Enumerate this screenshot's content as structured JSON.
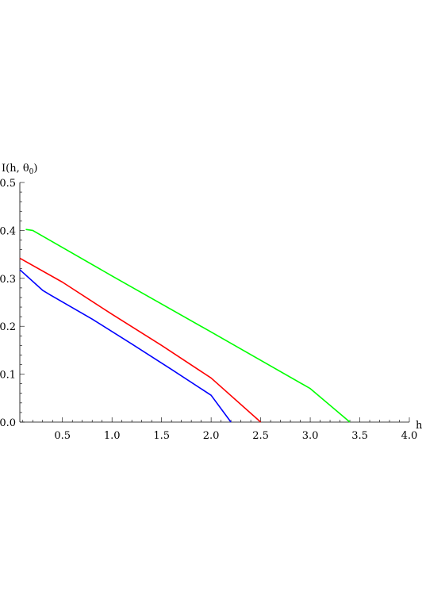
{
  "chart_data": {
    "type": "line",
    "title": "",
    "xlabel": "h",
    "ylabel_parts": {
      "base": "I(h, θ",
      "sub": "0",
      "close": ")"
    },
    "xlim": [
      0.07,
      4.0
    ],
    "ylim": [
      0.0,
      0.5
    ],
    "xticks": [
      {
        "value": 0.5,
        "label": "0.5"
      },
      {
        "value": 1.0,
        "label": "1.0"
      },
      {
        "value": 1.5,
        "label": "1.5"
      },
      {
        "value": 2.0,
        "label": "2.0"
      },
      {
        "value": 2.5,
        "label": "2.5"
      },
      {
        "value": 3.0,
        "label": "3.0"
      },
      {
        "value": 3.5,
        "label": "3.5"
      },
      {
        "value": 4.0,
        "label": "4.0"
      }
    ],
    "yticks": [
      {
        "value": 0.0,
        "label": "0.0"
      },
      {
        "value": 0.1,
        "label": "0.1"
      },
      {
        "value": 0.2,
        "label": "0.2"
      },
      {
        "value": 0.3,
        "label": "0.3"
      },
      {
        "value": 0.4,
        "label": "0.4"
      },
      {
        "value": 0.5,
        "label": "0.5"
      }
    ],
    "grid": false,
    "series": [
      {
        "color": "#0000ff",
        "points": [
          [
            0.07,
            0.318
          ],
          [
            0.3,
            0.275
          ],
          [
            0.38,
            0.265
          ],
          [
            0.8,
            0.215
          ],
          [
            1.2,
            0.163
          ],
          [
            1.6,
            0.11
          ],
          [
            2.0,
            0.056
          ],
          [
            2.2,
            0.0
          ]
        ]
      },
      {
        "color": "#ff0000",
        "points": [
          [
            0.07,
            0.342
          ],
          [
            0.5,
            0.292
          ],
          [
            1.0,
            0.225
          ],
          [
            1.5,
            0.16
          ],
          [
            2.0,
            0.092
          ],
          [
            2.5,
            0.0
          ]
        ]
      },
      {
        "color": "#00ff00",
        "points": [
          [
            0.13,
            0.402
          ],
          [
            0.2,
            0.4
          ],
          [
            1.0,
            0.305
          ],
          [
            2.0,
            0.188
          ],
          [
            3.0,
            0.07
          ],
          [
            3.4,
            0.0
          ]
        ]
      }
    ]
  }
}
